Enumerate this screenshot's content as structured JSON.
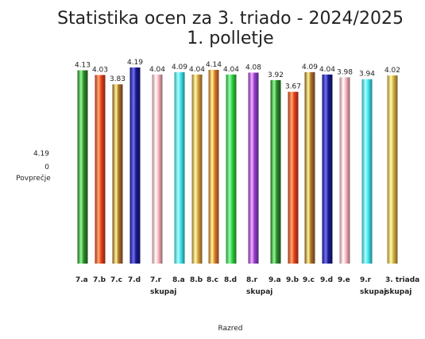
{
  "chart_data": {
    "type": "bar",
    "title": "Statistika ocen za 3. triado - 2024/2025",
    "subtitle": "1. polletje",
    "x_label": "Razred",
    "y_label": "Povprečje",
    "categories": [
      "7.a",
      "7.b",
      "7.c",
      "7.d",
      "7.r skupaj",
      "8.a",
      "8.b",
      "8.c",
      "8.d",
      "8.r skupaj",
      "9.a",
      "9.b",
      "9.c",
      "9.d",
      "9.e",
      "9.r skupaj",
      "3. triada skupaj"
    ],
    "values": [
      4.13,
      4.03,
      3.83,
      4.19,
      4.04,
      4.09,
      4.04,
      4.14,
      4.04,
      4.08,
      3.92,
      3.67,
      4.09,
      4.04,
      3.98,
      3.94,
      4.02
    ],
    "colors": [
      "#2e8b2e",
      "#e8401c",
      "#b07030",
      "#1a1a8c",
      "#ffb6c1",
      "#40e8f0",
      "#d8a040",
      "#e07830",
      "#30d040",
      "#9040d0",
      "#2e8b2e",
      "#e8401c",
      "#b07030",
      "#1a1a8c",
      "#ffb6c1",
      "#40e8f0",
      "#d8b040"
    ],
    "ylim": [
      0,
      4.19
    ],
    "yticks": [
      4.19,
      0
    ]
  }
}
